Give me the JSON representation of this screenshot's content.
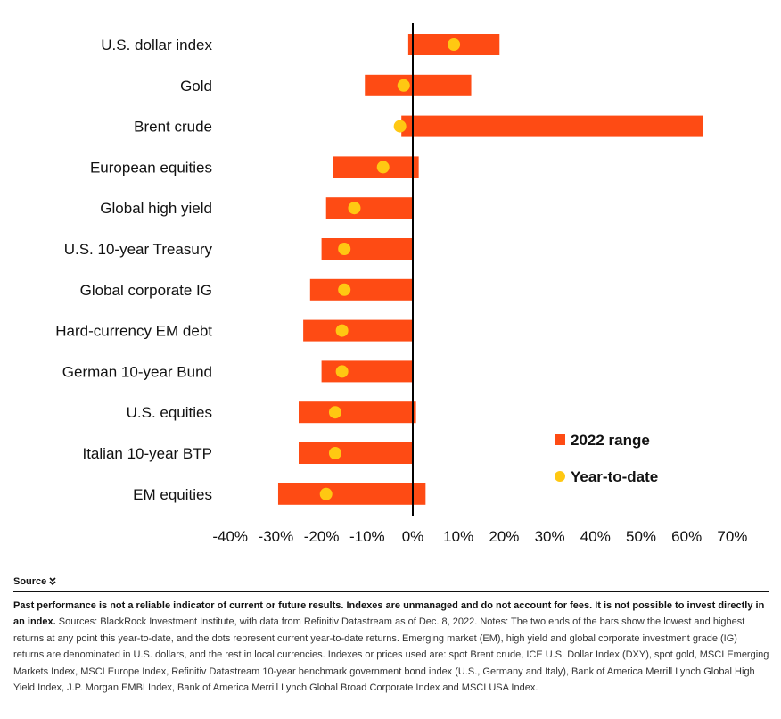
{
  "chart_data": {
    "type": "range-bar",
    "categories": [
      "U.S. dollar index",
      "Gold",
      "Brent crude",
      "European equities",
      "Global high yield",
      "U.S. 10-year Treasury",
      "Global corporate IG",
      "Hard-currency EM debt",
      "German 10-year Bund",
      "U.S. equities",
      "Italian 10-year BTP",
      "EM equities"
    ],
    "series": [
      {
        "name": "2022 range",
        "low": [
          -1.0,
          -10.5,
          -2.5,
          -17.5,
          -19.0,
          -20.0,
          -22.5,
          -24.0,
          -20.0,
          -25.0,
          -25.0,
          -29.5
        ],
        "high": [
          19.0,
          12.8,
          63.5,
          1.3,
          0.0,
          0.0,
          0.0,
          0.0,
          0.0,
          0.7,
          0.0,
          2.8
        ]
      },
      {
        "name": "Year-to-date",
        "values": [
          9.0,
          -2.0,
          -2.8,
          -6.5,
          -12.8,
          -15.0,
          -15.0,
          -15.5,
          -15.5,
          -17.0,
          -17.0,
          -19.0
        ]
      }
    ],
    "xlim": [
      -40,
      70
    ],
    "xticks": [
      -40,
      -30,
      -20,
      -10,
      0,
      10,
      20,
      30,
      40,
      50,
      60,
      70
    ],
    "xtick_labels": [
      "-40%",
      "-30%",
      "-20%",
      "-10%",
      "0%",
      "10%",
      "20%",
      "30%",
      "40%",
      "50%",
      "60%",
      "70%"
    ],
    "grid": false,
    "legend_position": "right",
    "colors": {
      "range": "#fe4b14",
      "ytd": "#ffc812",
      "zero_line": "#000000"
    }
  },
  "source": {
    "toggle_label": "Source",
    "toggle_icon": "double-chevron-down-icon",
    "disclaimer": "Past performance is not a reliable indicator of current or future results. Indexes are unmanaged and do not account for fees. It is not possible to invest directly in an index.",
    "notes": "Sources: BlackRock Investment Institute, with data from Refinitiv Datastream as of Dec. 8, 2022. Notes: The two ends of the bars show the lowest and highest returns at any point this year-to-date, and the dots represent current year-to-date returns. Emerging market (EM), high yield and global corporate investment grade (IG) returns are denominated in U.S. dollars, and the rest in local currencies. Indexes or prices used are: spot Brent crude, ICE U.S. Dollar Index (DXY), spot gold, MSCI Emerging Markets Index, MSCI Europe Index, Refinitiv Datastream 10-year benchmark government bond index (U.S., Germany and Italy), Bank of America Merrill Lynch Global High Yield Index, J.P. Morgan EMBI Index, Bank of America Merrill Lynch Global Broad Corporate Index and MSCI USA Index."
  }
}
